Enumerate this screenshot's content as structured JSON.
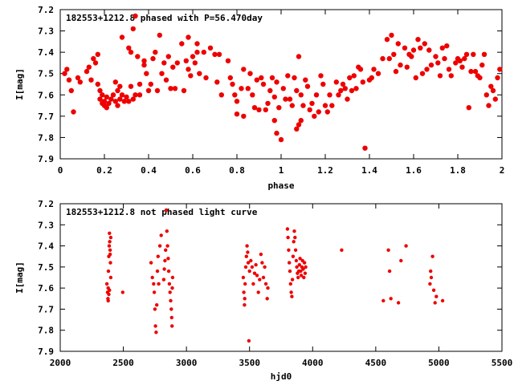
{
  "chart_data": [
    {
      "type": "scatter",
      "title": "182553+1212.8 phased with P=56.470day",
      "xlabel": "phase",
      "ylabel": "I[mag]",
      "xlim": [
        0,
        2
      ],
      "ylim": [
        7.9,
        7.2
      ],
      "y_inverted": true,
      "grid": false,
      "xticks": [
        "0",
        "0.2",
        "0.4",
        "0.6",
        "0.8",
        "1",
        "1.2",
        "1.4",
        "1.6",
        "1.8",
        "2"
      ],
      "yticks": [
        "7.2",
        "7.3",
        "7.4",
        "7.5",
        "7.6",
        "7.7",
        "7.8",
        "7.9"
      ],
      "marker_color": "#ee0000",
      "points": [
        [
          0.02,
          7.5
        ],
        [
          0.03,
          7.48
        ],
        [
          0.04,
          7.53
        ],
        [
          0.05,
          7.58
        ],
        [
          0.06,
          7.68
        ],
        [
          0.08,
          7.52
        ],
        [
          0.09,
          7.54
        ],
        [
          0.12,
          7.49
        ],
        [
          0.13,
          7.47
        ],
        [
          0.14,
          7.53
        ],
        [
          0.15,
          7.43
        ],
        [
          0.16,
          7.45
        ],
        [
          0.17,
          7.41
        ],
        [
          0.17,
          7.55
        ],
        [
          0.18,
          7.58
        ],
        [
          0.18,
          7.62
        ],
        [
          0.19,
          7.6
        ],
        [
          0.19,
          7.64
        ],
        [
          0.2,
          7.63
        ],
        [
          0.2,
          7.65
        ],
        [
          0.21,
          7.61
        ],
        [
          0.21,
          7.66
        ],
        [
          0.22,
          7.64
        ],
        [
          0.23,
          7.62
        ],
        [
          0.24,
          7.6
        ],
        [
          0.25,
          7.54
        ],
        [
          0.25,
          7.63
        ],
        [
          0.26,
          7.58
        ],
        [
          0.26,
          7.65
        ],
        [
          0.27,
          7.56
        ],
        [
          0.27,
          7.62
        ],
        [
          0.28,
          7.33
        ],
        [
          0.28,
          7.6
        ],
        [
          0.29,
          7.63
        ],
        [
          0.3,
          7.61
        ],
        [
          0.31,
          7.38
        ],
        [
          0.31,
          7.63
        ],
        [
          0.32,
          7.4
        ],
        [
          0.32,
          7.56
        ],
        [
          0.33,
          7.29
        ],
        [
          0.33,
          7.62
        ],
        [
          0.34,
          7.23
        ],
        [
          0.34,
          7.6
        ],
        [
          0.35,
          7.42
        ],
        [
          0.36,
          7.55
        ],
        [
          0.36,
          7.6
        ],
        [
          0.38,
          7.44
        ],
        [
          0.38,
          7.46
        ],
        [
          0.39,
          7.5
        ],
        [
          0.4,
          7.58
        ],
        [
          0.41,
          7.55
        ],
        [
          0.42,
          7.43
        ],
        [
          0.43,
          7.4
        ],
        [
          0.44,
          7.58
        ],
        [
          0.45,
          7.32
        ],
        [
          0.46,
          7.5
        ],
        [
          0.47,
          7.45
        ],
        [
          0.48,
          7.53
        ],
        [
          0.49,
          7.42
        ],
        [
          0.5,
          7.57
        ],
        [
          0.51,
          7.47
        ],
        [
          0.52,
          7.57
        ],
        [
          0.53,
          7.45
        ],
        [
          0.55,
          7.36
        ],
        [
          0.56,
          7.58
        ],
        [
          0.57,
          7.44
        ],
        [
          0.58,
          7.33
        ],
        [
          0.58,
          7.48
        ],
        [
          0.59,
          7.51
        ],
        [
          0.6,
          7.42
        ],
        [
          0.61,
          7.45
        ],
        [
          0.62,
          7.36
        ],
        [
          0.62,
          7.4
        ],
        [
          0.63,
          7.5
        ],
        [
          0.65,
          7.4
        ],
        [
          0.66,
          7.52
        ],
        [
          0.68,
          7.38
        ],
        [
          0.7,
          7.41
        ],
        [
          0.71,
          7.54
        ],
        [
          0.72,
          7.41
        ],
        [
          0.73,
          7.6
        ],
        [
          0.76,
          7.44
        ],
        [
          0.77,
          7.52
        ],
        [
          0.78,
          7.55
        ],
        [
          0.79,
          7.6
        ],
        [
          0.8,
          7.63
        ],
        [
          0.8,
          7.69
        ],
        [
          0.82,
          7.57
        ],
        [
          0.83,
          7.48
        ],
        [
          0.83,
          7.7
        ],
        [
          0.85,
          7.57
        ],
        [
          0.86,
          7.5
        ],
        [
          0.87,
          7.6
        ],
        [
          0.88,
          7.66
        ],
        [
          0.89,
          7.53
        ],
        [
          0.9,
          7.67
        ],
        [
          0.91,
          7.52
        ],
        [
          0.92,
          7.55
        ],
        [
          0.93,
          7.67
        ],
        [
          0.94,
          7.64
        ],
        [
          0.95,
          7.58
        ],
        [
          0.96,
          7.52
        ],
        [
          0.97,
          7.61
        ],
        [
          0.97,
          7.72
        ],
        [
          0.98,
          7.54
        ],
        [
          0.98,
          7.78
        ],
        [
          0.99,
          7.66
        ],
        [
          1.0,
          7.81
        ],
        [
          1.01,
          7.57
        ],
        [
          1.02,
          7.62
        ],
        [
          1.03,
          7.51
        ],
        [
          1.04,
          7.62
        ],
        [
          1.05,
          7.65
        ],
        [
          1.06,
          7.52
        ],
        [
          1.07,
          7.58
        ],
        [
          1.07,
          7.76
        ],
        [
          1.08,
          7.42
        ],
        [
          1.08,
          7.74
        ],
        [
          1.09,
          7.6
        ],
        [
          1.09,
          7.72
        ],
        [
          1.1,
          7.65
        ],
        [
          1.11,
          7.53
        ],
        [
          1.12,
          7.56
        ],
        [
          1.13,
          7.67
        ],
        [
          1.14,
          7.64
        ],
        [
          1.15,
          7.7
        ],
        [
          1.16,
          7.6
        ],
        [
          1.17,
          7.68
        ],
        [
          1.18,
          7.51
        ],
        [
          1.19,
          7.55
        ],
        [
          1.2,
          7.65
        ],
        [
          1.21,
          7.68
        ],
        [
          1.22,
          7.6
        ],
        [
          1.23,
          7.65
        ],
        [
          1.25,
          7.54
        ],
        [
          1.26,
          7.6
        ],
        [
          1.27,
          7.58
        ],
        [
          1.28,
          7.55
        ],
        [
          1.29,
          7.57
        ],
        [
          1.3,
          7.62
        ],
        [
          1.31,
          7.52
        ],
        [
          1.32,
          7.58
        ],
        [
          1.33,
          7.51
        ],
        [
          1.34,
          7.57
        ],
        [
          1.35,
          7.47
        ],
        [
          1.36,
          7.48
        ],
        [
          1.37,
          7.54
        ],
        [
          1.38,
          7.85
        ],
        [
          1.4,
          7.53
        ],
        [
          1.41,
          7.52
        ],
        [
          1.42,
          7.48
        ],
        [
          1.44,
          7.5
        ],
        [
          1.46,
          7.43
        ],
        [
          1.48,
          7.34
        ],
        [
          1.49,
          7.43
        ],
        [
          1.5,
          7.32
        ],
        [
          1.51,
          7.41
        ],
        [
          1.52,
          7.49
        ],
        [
          1.53,
          7.36
        ],
        [
          1.54,
          7.46
        ],
        [
          1.56,
          7.38
        ],
        [
          1.57,
          7.47
        ],
        [
          1.58,
          7.41
        ],
        [
          1.59,
          7.42
        ],
        [
          1.6,
          7.39
        ],
        [
          1.61,
          7.52
        ],
        [
          1.62,
          7.34
        ],
        [
          1.63,
          7.38
        ],
        [
          1.64,
          7.5
        ],
        [
          1.65,
          7.36
        ],
        [
          1.66,
          7.48
        ],
        [
          1.67,
          7.39
        ],
        [
          1.68,
          7.46
        ],
        [
          1.7,
          7.42
        ],
        [
          1.71,
          7.45
        ],
        [
          1.72,
          7.51
        ],
        [
          1.73,
          7.38
        ],
        [
          1.74,
          7.43
        ],
        [
          1.75,
          7.37
        ],
        [
          1.76,
          7.48
        ],
        [
          1.77,
          7.51
        ],
        [
          1.79,
          7.45
        ],
        [
          1.8,
          7.43
        ],
        [
          1.81,
          7.44
        ],
        [
          1.82,
          7.47
        ],
        [
          1.83,
          7.43
        ],
        [
          1.84,
          7.41
        ],
        [
          1.85,
          7.66
        ],
        [
          1.86,
          7.49
        ],
        [
          1.87,
          7.41
        ],
        [
          1.88,
          7.49
        ],
        [
          1.89,
          7.51
        ],
        [
          1.9,
          7.52
        ],
        [
          1.91,
          7.46
        ],
        [
          1.92,
          7.41
        ],
        [
          1.93,
          7.6
        ],
        [
          1.94,
          7.65
        ],
        [
          1.95,
          7.56
        ],
        [
          1.96,
          7.58
        ],
        [
          1.97,
          7.62
        ],
        [
          1.98,
          7.52
        ],
        [
          1.99,
          7.48
        ]
      ]
    },
    {
      "type": "scatter",
      "title": "182553+1212.8 not phased light curve",
      "xlabel": "hjd0",
      "ylabel": "I[mag]",
      "xlim": [
        2000,
        5500
      ],
      "ylim": [
        7.9,
        7.2
      ],
      "y_inverted": true,
      "grid": false,
      "xticks": [
        "2000",
        "2500",
        "3000",
        "3500",
        "4000",
        "4500",
        "5000",
        "5500"
      ],
      "yticks": [
        "7.2",
        "7.3",
        "7.4",
        "7.5",
        "7.6",
        "7.7",
        "7.8",
        "7.9"
      ],
      "marker_color": "#ee0000",
      "points": [
        [
          2370,
          7.58
        ],
        [
          2375,
          7.62
        ],
        [
          2378,
          7.65
        ],
        [
          2380,
          7.6
        ],
        [
          2382,
          7.52
        ],
        [
          2385,
          7.45
        ],
        [
          2388,
          7.4
        ],
        [
          2390,
          7.34
        ],
        [
          2392,
          7.38
        ],
        [
          2395,
          7.44
        ],
        [
          2398,
          7.48
        ],
        [
          2400,
          7.55
        ],
        [
          2380,
          7.66
        ],
        [
          2385,
          7.63
        ],
        [
          2390,
          7.61
        ],
        [
          2395,
          7.42
        ],
        [
          2400,
          7.36
        ],
        [
          2495,
          7.62
        ],
        [
          2720,
          7.48
        ],
        [
          2730,
          7.55
        ],
        [
          2740,
          7.58
        ],
        [
          2745,
          7.62
        ],
        [
          2750,
          7.7
        ],
        [
          2755,
          7.78
        ],
        [
          2760,
          7.81
        ],
        [
          2765,
          7.68
        ],
        [
          2770,
          7.52
        ],
        [
          2775,
          7.45
        ],
        [
          2780,
          7.58
        ],
        [
          2790,
          7.4
        ],
        [
          2800,
          7.35
        ],
        [
          2820,
          7.56
        ],
        [
          2825,
          7.51
        ],
        [
          2830,
          7.47
        ],
        [
          2835,
          7.42
        ],
        [
          2840,
          7.23
        ],
        [
          2845,
          7.33
        ],
        [
          2850,
          7.4
        ],
        [
          2855,
          7.46
        ],
        [
          2860,
          7.52
        ],
        [
          2865,
          7.58
        ],
        [
          2870,
          7.62
        ],
        [
          2875,
          7.66
        ],
        [
          2880,
          7.7
        ],
        [
          2883,
          7.74
        ],
        [
          2886,
          7.78
        ],
        [
          2888,
          7.6
        ],
        [
          2890,
          7.55
        ],
        [
          3450,
          7.55
        ],
        [
          3455,
          7.62
        ],
        [
          3460,
          7.68
        ],
        [
          3462,
          7.65
        ],
        [
          3465,
          7.58
        ],
        [
          3470,
          7.5
        ],
        [
          3475,
          7.45
        ],
        [
          3480,
          7.4
        ],
        [
          3485,
          7.43
        ],
        [
          3490,
          7.48
        ],
        [
          3495,
          7.85
        ],
        [
          3500,
          7.52
        ],
        [
          3510,
          7.47
        ],
        [
          3520,
          7.5
        ],
        [
          3530,
          7.58
        ],
        [
          3540,
          7.53
        ],
        [
          3550,
          7.49
        ],
        [
          3560,
          7.54
        ],
        [
          3570,
          7.62
        ],
        [
          3580,
          7.56
        ],
        [
          3590,
          7.44
        ],
        [
          3600,
          7.48
        ],
        [
          3610,
          7.55
        ],
        [
          3620,
          7.5
        ],
        [
          3630,
          7.58
        ],
        [
          3640,
          7.65
        ],
        [
          3645,
          7.6
        ],
        [
          3800,
          7.32
        ],
        [
          3805,
          7.36
        ],
        [
          3810,
          7.42
        ],
        [
          3815,
          7.48
        ],
        [
          3820,
          7.52
        ],
        [
          3825,
          7.58
        ],
        [
          3830,
          7.62
        ],
        [
          3835,
          7.64
        ],
        [
          3840,
          7.56
        ],
        [
          3845,
          7.45
        ],
        [
          3850,
          7.38
        ],
        [
          3855,
          7.33
        ],
        [
          3860,
          7.36
        ],
        [
          3865,
          7.42
        ],
        [
          3870,
          7.47
        ],
        [
          3875,
          7.5
        ],
        [
          3880,
          7.53
        ],
        [
          3885,
          7.55
        ],
        [
          3890,
          7.52
        ],
        [
          3895,
          7.49
        ],
        [
          3900,
          7.46
        ],
        [
          3905,
          7.52
        ],
        [
          3910,
          7.54
        ],
        [
          3915,
          7.5
        ],
        [
          3920,
          7.47
        ],
        [
          3925,
          7.51
        ],
        [
          3930,
          7.55
        ],
        [
          3935,
          7.48
        ],
        [
          3940,
          7.53
        ],
        [
          3945,
          7.5
        ],
        [
          4230,
          7.42
        ],
        [
          4560,
          7.66
        ],
        [
          4600,
          7.42
        ],
        [
          4610,
          7.52
        ],
        [
          4620,
          7.65
        ],
        [
          4680,
          7.67
        ],
        [
          4700,
          7.47
        ],
        [
          4740,
          7.4
        ],
        [
          4930,
          7.58
        ],
        [
          4935,
          7.52
        ],
        [
          4940,
          7.55
        ],
        [
          4950,
          7.45
        ],
        [
          4960,
          7.61
        ],
        [
          4970,
          7.67
        ],
        [
          4980,
          7.64
        ],
        [
          5030,
          7.66
        ]
      ]
    }
  ]
}
